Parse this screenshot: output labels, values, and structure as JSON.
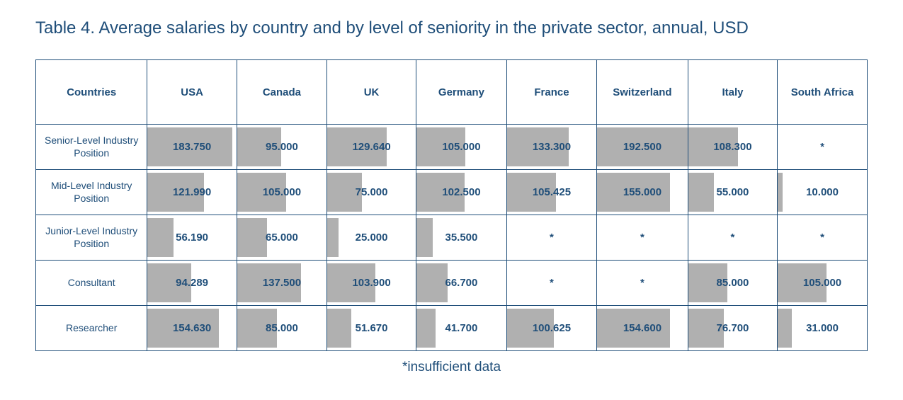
{
  "title": "Table 4. Average salaries by country and by level of seniority in the private sector, annual, USD",
  "footnote": "*insufficient data",
  "table": {
    "row_header_label": "Countries",
    "row_header_width": 160,
    "data_col_width": 130,
    "header_row_height": 90,
    "data_row_height": 55,
    "bar_max_value": 192500,
    "border_color": "#1f4e79",
    "text_color": "#1f4e79",
    "bar_color": "#b0b0b0",
    "background_color": "#ffffff",
    "title_fontsize": 24,
    "header_fontsize": 15,
    "row_header_fontsize": 14,
    "value_fontsize": 15,
    "columns": [
      "USA",
      "Canada",
      "UK",
      "Germany",
      "France",
      "Switzerland",
      "Italy",
      "South Africa"
    ],
    "rows": [
      {
        "label": "Senior-Level Industry Position",
        "cells": [
          {
            "display": "183.750",
            "value": 183750
          },
          {
            "display": "95.000",
            "value": 95000
          },
          {
            "display": "129.640",
            "value": 129640
          },
          {
            "display": "105.000",
            "value": 105000
          },
          {
            "display": "133.300",
            "value": 133300
          },
          {
            "display": "192.500",
            "value": 192500
          },
          {
            "display": "108.300",
            "value": 108300
          },
          {
            "display": "*",
            "value": null
          }
        ]
      },
      {
        "label": "Mid-Level Industry Position",
        "cells": [
          {
            "display": "121.990",
            "value": 121990
          },
          {
            "display": "105.000",
            "value": 105000
          },
          {
            "display": "75.000",
            "value": 75000
          },
          {
            "display": "102.500",
            "value": 102500
          },
          {
            "display": "105.425",
            "value": 105425
          },
          {
            "display": "155.000",
            "value": 155000
          },
          {
            "display": "55.000",
            "value": 55000
          },
          {
            "display": "10.000",
            "value": 10000
          }
        ]
      },
      {
        "label": "Junior-Level Industry Position",
        "cells": [
          {
            "display": "56.190",
            "value": 56190
          },
          {
            "display": "65.000",
            "value": 65000
          },
          {
            "display": "25.000",
            "value": 25000
          },
          {
            "display": "35.500",
            "value": 35500
          },
          {
            "display": "*",
            "value": null
          },
          {
            "display": "*",
            "value": null
          },
          {
            "display": "*",
            "value": null
          },
          {
            "display": "*",
            "value": null
          }
        ]
      },
      {
        "label": "Consultant",
        "cells": [
          {
            "display": "94.289",
            "value": 94289
          },
          {
            "display": "137.500",
            "value": 137500
          },
          {
            "display": "103.900",
            "value": 103900
          },
          {
            "display": "66.700",
            "value": 66700
          },
          {
            "display": "*",
            "value": null
          },
          {
            "display": "*",
            "value": null
          },
          {
            "display": "85.000",
            "value": 85000
          },
          {
            "display": "105.000",
            "value": 105000
          }
        ]
      },
      {
        "label": "Researcher",
        "cells": [
          {
            "display": "154.630",
            "value": 154630
          },
          {
            "display": "85.000",
            "value": 85000
          },
          {
            "display": "51.670",
            "value": 51670
          },
          {
            "display": "41.700",
            "value": 41700
          },
          {
            "display": "100.625",
            "value": 100625
          },
          {
            "display": "154.600",
            "value": 154600
          },
          {
            "display": "76.700",
            "value": 76700
          },
          {
            "display": "31.000",
            "value": 31000
          }
        ]
      }
    ]
  }
}
